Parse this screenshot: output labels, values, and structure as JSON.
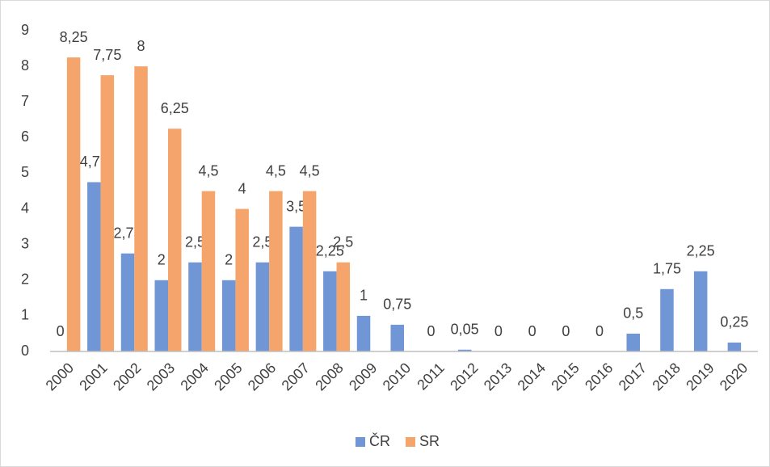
{
  "chart_data": {
    "type": "bar",
    "categories": [
      "2000",
      "2001",
      "2002",
      "2003",
      "2004",
      "2005",
      "2006",
      "2007",
      "2008",
      "2009",
      "2010",
      "2011",
      "2012",
      "2013",
      "2014",
      "2015",
      "2016",
      "2017",
      "2018",
      "2019",
      "2020"
    ],
    "series": [
      {
        "name": "ČR",
        "color": "#7196d6",
        "values": [
          0,
          4.75,
          2.75,
          2,
          2.5,
          2,
          2.5,
          3.5,
          2.25,
          1,
          0.75,
          0,
          0.05,
          0,
          0,
          0,
          0,
          0.5,
          1.75,
          2.25,
          0.25
        ],
        "value_labels": [
          "0",
          "4,75",
          "2,75",
          "2",
          "2,5",
          "2",
          "2,5",
          "3,5",
          "2,25",
          "1",
          "0,75",
          "0",
          "0,05",
          "0",
          "0",
          "0",
          "0",
          "0,5",
          "1,75",
          "2,25",
          "0,25"
        ]
      },
      {
        "name": "SR",
        "color": "#f5a46c",
        "values": [
          8.25,
          7.75,
          8,
          6.25,
          4.5,
          4,
          4.5,
          4.5,
          2.5,
          null,
          null,
          null,
          null,
          null,
          null,
          null,
          null,
          null,
          null,
          null,
          null
        ],
        "value_labels": [
          "8,25",
          "7,75",
          "8",
          "6,25",
          "4,5",
          "4",
          "4,5",
          "4,5",
          "2,5",
          null,
          null,
          null,
          null,
          null,
          null,
          null,
          null,
          null,
          null,
          null,
          null
        ]
      }
    ],
    "ylim": [
      0,
      9
    ],
    "yticks": [
      0,
      1,
      2,
      3,
      4,
      5,
      6,
      7,
      8,
      9
    ],
    "grid": false,
    "legend": "bottom"
  }
}
